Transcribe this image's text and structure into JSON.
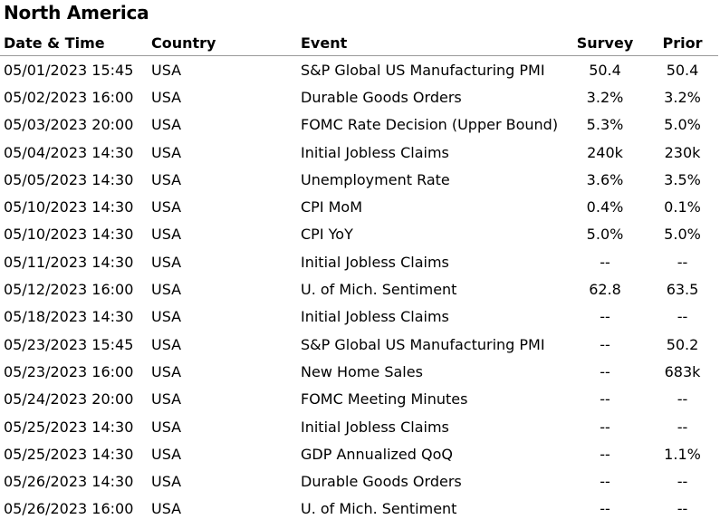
{
  "title": "North America",
  "headers": {
    "date": "Date & Time",
    "country": "Country",
    "event": "Event",
    "survey": "Survey",
    "prior": "Prior"
  },
  "rows": [
    {
      "date": "05/01/2023 15:45",
      "country": "USA",
      "event": "S&P Global US Manufacturing PMI",
      "survey": "50.4",
      "prior": "50.4"
    },
    {
      "date": "05/02/2023 16:00",
      "country": "USA",
      "event": "Durable Goods Orders",
      "survey": "3.2%",
      "prior": "3.2%"
    },
    {
      "date": "05/03/2023 20:00",
      "country": "USA",
      "event": "FOMC Rate Decision (Upper Bound)",
      "survey": "5.3%",
      "prior": "5.0%"
    },
    {
      "date": "05/04/2023 14:30",
      "country": "USA",
      "event": "Initial Jobless Claims",
      "survey": "240k",
      "prior": "230k"
    },
    {
      "date": "05/05/2023 14:30",
      "country": "USA",
      "event": "Unemployment Rate",
      "survey": "3.6%",
      "prior": "3.5%"
    },
    {
      "date": "05/10/2023 14:30",
      "country": "USA",
      "event": "CPI MoM",
      "survey": "0.4%",
      "prior": "0.1%"
    },
    {
      "date": "05/10/2023 14:30",
      "country": "USA",
      "event": "CPI YoY",
      "survey": "5.0%",
      "prior": "5.0%"
    },
    {
      "date": "05/11/2023 14:30",
      "country": "USA",
      "event": "Initial Jobless Claims",
      "survey": "--",
      "prior": "--"
    },
    {
      "date": "05/12/2023 16:00",
      "country": "USA",
      "event": "U. of Mich. Sentiment",
      "survey": "62.8",
      "prior": "63.5"
    },
    {
      "date": "05/18/2023 14:30",
      "country": "USA",
      "event": "Initial Jobless Claims",
      "survey": "--",
      "prior": "--"
    },
    {
      "date": "05/23/2023 15:45",
      "country": "USA",
      "event": "S&P Global US Manufacturing PMI",
      "survey": "--",
      "prior": "50.2"
    },
    {
      "date": "05/23/2023 16:00",
      "country": "USA",
      "event": "New Home Sales",
      "survey": "--",
      "prior": "683k"
    },
    {
      "date": "05/24/2023 20:00",
      "country": "USA",
      "event": "FOMC Meeting Minutes",
      "survey": "--",
      "prior": "--"
    },
    {
      "date": "05/25/2023 14:30",
      "country": "USA",
      "event": "Initial Jobless Claims",
      "survey": "--",
      "prior": "--"
    },
    {
      "date": "05/25/2023 14:30",
      "country": "USA",
      "event": "GDP Annualized QoQ",
      "survey": "--",
      "prior": "1.1%"
    },
    {
      "date": "05/26/2023 14:30",
      "country": "USA",
      "event": "Durable Goods Orders",
      "survey": "--",
      "prior": "--"
    },
    {
      "date": "05/26/2023 16:00",
      "country": "USA",
      "event": "U. of Mich. Sentiment",
      "survey": "--",
      "prior": "--"
    }
  ]
}
